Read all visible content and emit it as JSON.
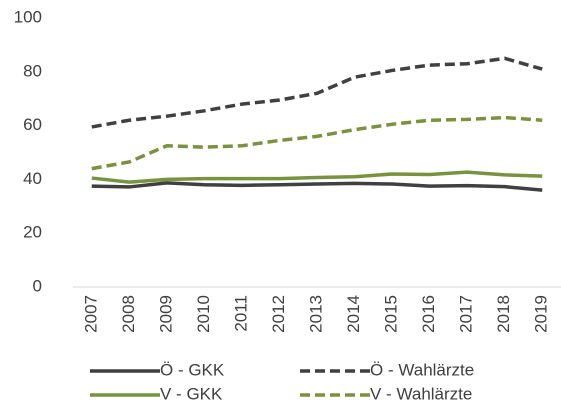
{
  "chart_data": {
    "type": "line",
    "categories": [
      "2007",
      "2008",
      "2009",
      "2010",
      "2011",
      "2012",
      "2013",
      "2014",
      "2015",
      "2016",
      "2017",
      "2018",
      "2019"
    ],
    "series": [
      {
        "name": "Ö - GKK",
        "color": "#404040",
        "dashed": false,
        "values": [
          37.5,
          37.2,
          38.7,
          38,
          37.8,
          38,
          38.3,
          38.5,
          38.3,
          37.5,
          37.7,
          37.3,
          36
        ]
      },
      {
        "name": "Ö - Wahlärzte",
        "color": "#404040",
        "dashed": true,
        "values": [
          59.5,
          62,
          63.5,
          65.5,
          68,
          69.5,
          72,
          78,
          80.5,
          82.5,
          83,
          85,
          81
        ]
      },
      {
        "name": "V - GKK",
        "color": "#77933c",
        "dashed": false,
        "values": [
          40.5,
          39,
          40,
          40.3,
          40.3,
          40.3,
          40.7,
          41,
          42,
          41.8,
          42.7,
          41.7,
          41.2
        ]
      },
      {
        "name": "V - Wahlärzte",
        "color": "#77933c",
        "dashed": true,
        "values": [
          44,
          46.5,
          52.5,
          52,
          52.5,
          54.5,
          56,
          58.5,
          60.5,
          62,
          62.3,
          63,
          62
        ]
      }
    ],
    "ylim": [
      0,
      100
    ],
    "yticks": [
      0,
      20,
      40,
      60,
      80,
      100
    ],
    "grid": false
  }
}
